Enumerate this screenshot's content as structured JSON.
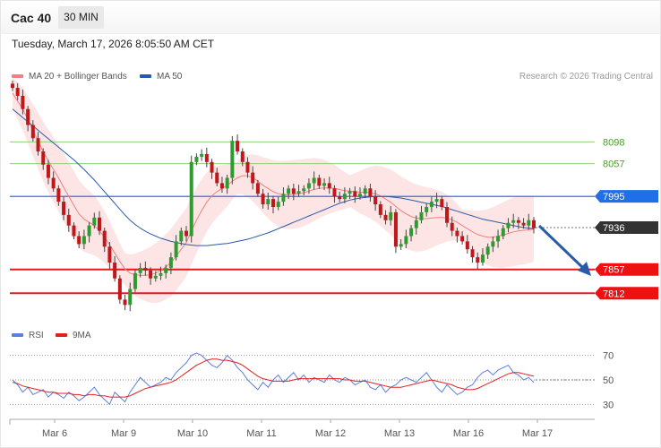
{
  "header": {
    "symbol": "Cac 40",
    "timeframe": "30 MIN"
  },
  "datetime": "Tuesday, March 17, 2026 8:05:50 AM CET",
  "legend": {
    "ma20": {
      "label": "MA 20 + Bollinger Bands",
      "color": "#f08080"
    },
    "ma50": {
      "label": "MA 50",
      "color": "#2b5aa8"
    }
  },
  "research": "Research © 2026 Trading Central",
  "rsi_legend": {
    "rsi": {
      "label": "RSI",
      "color": "#5b7fdd"
    },
    "ma9": {
      "label": "9MA",
      "color": "#e02020"
    }
  },
  "chart_data": {
    "type": "candlestick",
    "y_range": [
      7760,
      8190
    ],
    "x_labels": [
      "Mar 6",
      "Mar 9",
      "Mar 10",
      "Mar 11",
      "Mar 12",
      "Mar 13",
      "Mar 16",
      "Mar 17"
    ],
    "levels": [
      {
        "value": 8098,
        "label": "8098",
        "style": "resistance-green"
      },
      {
        "value": 8057,
        "label": "8057",
        "style": "resistance-green"
      },
      {
        "value": 7995,
        "label": "7995",
        "style": "pivot-blue"
      },
      {
        "value": 7936,
        "label": "7936",
        "style": "last-price"
      },
      {
        "value": 7857,
        "label": "7857",
        "style": "support-red"
      },
      {
        "value": 7812,
        "label": "7812",
        "style": "support-red"
      }
    ],
    "close_path": [
      8200,
      8185,
      8160,
      8130,
      8105,
      8080,
      8055,
      8030,
      8010,
      7985,
      7960,
      7940,
      7920,
      7905,
      7920,
      7940,
      7955,
      7930,
      7900,
      7870,
      7840,
      7800,
      7790,
      7820,
      7850,
      7860,
      7855,
      7840,
      7845,
      7850,
      7860,
      7880,
      7910,
      7930,
      7920,
      8060,
      8070,
      8075,
      8060,
      8040,
      8020,
      8010,
      8030,
      8100,
      8080,
      8060,
      8040,
      8020,
      8000,
      7980,
      7990,
      7975,
      7985,
      8000,
      8010,
      8000,
      8005,
      8010,
      8020,
      8030,
      8015,
      8020,
      8010,
      7995,
      7990,
      8000,
      8005,
      7995,
      8000,
      8010,
      7995,
      7980,
      7960,
      7950,
      7965,
      7900,
      7905,
      7920,
      7935,
      7950,
      7965,
      7975,
      7985,
      7990,
      7975,
      7945,
      7930,
      7920,
      7910,
      7895,
      7880,
      7870,
      7885,
      7900,
      7910,
      7920,
      7935,
      7945,
      7950,
      7945,
      7940,
      7950,
      7935
    ],
    "ma20": [
      8190,
      8175,
      8160,
      8140,
      8120,
      8100,
      8080,
      8062,
      8046,
      8030,
      8012,
      7995,
      7978,
      7962,
      7952,
      7946,
      7940,
      7930,
      7918,
      7904,
      7888,
      7872,
      7858,
      7850,
      7847,
      7846,
      7846,
      7847,
      7850,
      7855,
      7862,
      7870,
      7882,
      7895,
      7908,
      7930,
      7950,
      7968,
      7984,
      7996,
      8004,
      8010,
      8016,
      8024,
      8030,
      8034,
      8034,
      8030,
      8024,
      8016,
      8010,
      8004,
      8000,
      7998,
      7998,
      7999,
      8000,
      8002,
      8005,
      8008,
      8010,
      8011,
      8011,
      8010,
      8008,
      8006,
      8005,
      8004,
      8003,
      8003,
      8002,
      8000,
      7996,
      7990,
      7984,
      7976,
      7968,
      7962,
      7957,
      7954,
      7953,
      7953,
      7954,
      7955,
      7955,
      7954,
      7951,
      7946,
      7940,
      7934,
      7928,
      7923,
      7920,
      7918,
      7918,
      7920,
      7922,
      7925,
      7928,
      7930,
      7931,
      7932,
      7933
    ],
    "ma50": [
      8160,
      8152,
      8144,
      8136,
      8128,
      8120,
      8112,
      8104,
      8096,
      8088,
      8080,
      8072,
      8064,
      8055,
      8046,
      8036,
      8026,
      8015,
      8004,
      7993,
      7982,
      7971,
      7960,
      7950,
      7942,
      7935,
      7929,
      7924,
      7920,
      7916,
      7913,
      7910,
      7908,
      7906,
      7904,
      7903,
      7902,
      7902,
      7902,
      7903,
      7904,
      7905,
      7906,
      7908,
      7910,
      7912,
      7914,
      7917,
      7920,
      7923,
      7926,
      7930,
      7934,
      7938,
      7942,
      7946,
      7950,
      7954,
      7958,
      7962,
      7966,
      7970,
      7974,
      7978,
      7982,
      7985,
      7988,
      7990,
      7992,
      7993,
      7994,
      7995,
      7995,
      7995,
      7994,
      7993,
      7992,
      7990,
      7988,
      7986,
      7984,
      7982,
      7980,
      7978,
      7976,
      7973,
      7970,
      7967,
      7964,
      7961,
      7958,
      7955,
      7952,
      7950,
      7948,
      7946,
      7944,
      7942,
      7940,
      7938,
      7936,
      7935,
      7934
    ],
    "rsi": {
      "y_range": [
        20,
        80
      ],
      "levels": [
        70,
        50,
        30
      ],
      "rsi_values": [
        50,
        46,
        40,
        44,
        38,
        40,
        42,
        36,
        40,
        38,
        35,
        40,
        37,
        33,
        36,
        40,
        44,
        38,
        34,
        30,
        40,
        36,
        32,
        40,
        46,
        52,
        48,
        44,
        46,
        48,
        52,
        50,
        56,
        60,
        64,
        70,
        72,
        70,
        66,
        62,
        60,
        64,
        70,
        66,
        60,
        56,
        50,
        46,
        42,
        48,
        44,
        50,
        54,
        48,
        52,
        56,
        50,
        54,
        48,
        52,
        50,
        48,
        54,
        50,
        48,
        52,
        50,
        46,
        48,
        50,
        44,
        42,
        46,
        40,
        44,
        46,
        50,
        52,
        50,
        48,
        52,
        56,
        50,
        44,
        40,
        46,
        42,
        38,
        40,
        44,
        46,
        52,
        56,
        58,
        54,
        58,
        60,
        62,
        56,
        54,
        50,
        52,
        48
      ],
      "ma9_values": [
        48,
        47,
        45,
        44,
        43,
        42,
        41,
        40,
        40,
        39,
        39,
        39,
        38,
        38,
        37,
        38,
        38,
        37,
        37,
        36,
        36,
        36,
        36,
        37,
        39,
        41,
        43,
        44,
        45,
        46,
        47,
        48,
        50,
        53,
        56,
        59,
        62,
        64,
        66,
        67,
        67,
        66,
        66,
        65,
        64,
        62,
        59,
        56,
        53,
        51,
        50,
        49,
        49,
        49,
        49,
        50,
        51,
        51,
        51,
        51,
        51,
        51,
        51,
        51,
        51,
        50,
        50,
        49,
        49,
        49,
        48,
        47,
        46,
        45,
        44,
        44,
        44,
        45,
        46,
        47,
        48,
        49,
        50,
        49,
        48,
        47,
        46,
        44,
        43,
        42,
        42,
        43,
        45,
        47,
        49,
        51,
        53,
        55,
        56,
        56,
        55,
        54,
        53
      ]
    }
  }
}
